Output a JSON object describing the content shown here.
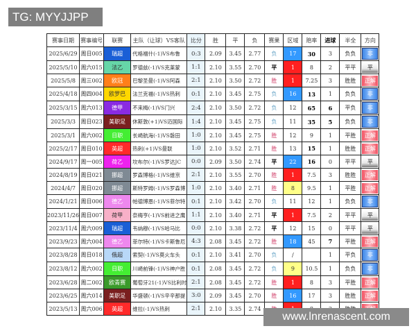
{
  "overlay_tag": "TG: MYYJJPP",
  "watermark": "www.lnrenascent.com",
  "headers": [
    "赛事日期",
    "赛事编号",
    "联赛",
    "主队（让球）VS客队",
    "比分",
    "胜",
    "平",
    "负",
    "赛果",
    "区域",
    "赔率",
    "进球",
    "半全",
    "方向"
  ],
  "colors": {
    "zone_red": "#ff2020",
    "zone_blue": "#3399ff",
    "zone_yellow": "#ffff88",
    "瑞超": "#1a5fd6",
    "法乙": "#66d6a8",
    "欧冠": "#ff7f1a",
    "欧罗巴": "#ffd700",
    "德甲": "#8a2be2",
    "美职足": "#7a1f1f",
    "日职": "#44ee33",
    "英超": "#ff2a2a",
    "荷乙": "#ee22ee",
    "挪超": "#7f8a94",
    "德乙": "#ee88ee",
    "荷甲": "#f8b0c8",
    "俄超": "#b8d8f8",
    "欧青赛": "#3a9a2a"
  },
  "rows": [
    {
      "date": "2025/6/29",
      "code": "周日005",
      "league": "瑞超",
      "match": "代格福什(-1)VS布鲁",
      "score": "0:3",
      "w": "2.09",
      "d": "3.45",
      "l": "2.77",
      "result": "负",
      "zone": "17",
      "zone_color": "blue",
      "odds": "30",
      "goals": "3",
      "hf": "负负",
      "dir": "非",
      "odds_bold": true,
      "goals_bold": false
    },
    {
      "date": "2025/5/10",
      "code": "周六015",
      "league": "法乙",
      "match": "罗德兹(-1)VS克莱蒙",
      "score": "1:1",
      "w": "2.10",
      "d": "3.55",
      "l": "2.70",
      "result": "平",
      "zone": "1",
      "zone_color": "red",
      "odds": "8",
      "goals": "2",
      "hf": "平平",
      "dir": "平",
      "odds_bold": false,
      "goals_bold": false
    },
    {
      "date": "2025/5/8",
      "code": "周三002",
      "league": "欧冠",
      "match": "巴黎圣曼(-1)VS阿森",
      "score": "2:1",
      "w": "2.10",
      "d": "3.50",
      "l": "2.72",
      "result": "胜",
      "zone": "1",
      "zone_color": "red",
      "odds": "7.25",
      "goals": "3",
      "hf": "胜胜",
      "dir": "正解",
      "odds_bold": false,
      "goals_bold": false
    },
    {
      "date": "2025/4/18",
      "code": "周四004",
      "league": "欧罗巴",
      "match": "法兰克福(-1)VS热刺",
      "score": "0:1",
      "w": "2.10",
      "d": "3.45",
      "l": "2.75",
      "result": "负",
      "zone": "16",
      "zone_color": "blue",
      "odds": "13",
      "goals": "1",
      "hf": "负负",
      "dir": "非",
      "odds_bold": true,
      "goals_bold": false
    },
    {
      "date": "2025/3/15",
      "code": "周六013",
      "league": "德甲",
      "match": "不来梅(-1)VS门兴",
      "score": "2:4",
      "w": "2.10",
      "d": "3.50",
      "l": "2.72",
      "result": "负",
      "zone": "12",
      "zone_color": "",
      "odds": "65",
      "goals": "6",
      "hf": "平负",
      "dir": "非",
      "odds_bold": true,
      "goals_bold": true
    },
    {
      "date": "2025/3/3",
      "code": "周日023",
      "league": "美职足",
      "match": "休斯敦(+1)VS迈国际",
      "score": "1:4",
      "w": "2.10",
      "d": "3.45",
      "l": "2.75",
      "result": "负",
      "zone": "11",
      "zone_color": "",
      "odds": "35",
      "goals": "5",
      "hf": "负负",
      "dir": "非",
      "odds_bold": true,
      "goals_bold": true
    },
    {
      "date": "2025/3/1",
      "code": "周六002",
      "league": "日职",
      "match": "长崎航海(-1)VS磐田",
      "score": "1:0",
      "w": "2.10",
      "d": "3.45",
      "l": "2.75",
      "result": "胜",
      "zone": "12",
      "zone_color": "",
      "odds": "9",
      "goals": "1",
      "hf": "平胜",
      "dir": "正解",
      "odds_bold": false,
      "goals_bold": false
    },
    {
      "date": "2025/2/17",
      "code": "周日010",
      "league": "英超",
      "match": "热刺(+1)VS曼联",
      "score": "1:0",
      "w": "2.10",
      "d": "3.52",
      "l": "2.71",
      "result": "胜",
      "zone": "13",
      "zone_color": "",
      "odds": "15",
      "goals": "1",
      "hf": "胜胜",
      "dir": "正解",
      "odds_bold": true,
      "goals_bold": false
    },
    {
      "date": "2024/9/17",
      "code": "周一005",
      "league": "荷乙",
      "match": "坎布尔(-1)VS罗达JC",
      "score": "0:0",
      "w": "2.09",
      "d": "3.50",
      "l": "2.74",
      "result": "平",
      "zone": "22",
      "zone_color": "blue",
      "odds": "16",
      "goals": "0",
      "hf": "平平",
      "dir": "平",
      "odds_bold": true,
      "goals_bold": false
    },
    {
      "date": "2024/8/19",
      "code": "周日021",
      "league": "挪超",
      "match": "罗森博格(-1)VS维京",
      "score": "2:1",
      "w": "2.10",
      "d": "3.55",
      "l": "2.70",
      "result": "胜",
      "zone": "1",
      "zone_color": "red",
      "odds": "7.5",
      "goals": "3",
      "hf": "胜胜",
      "dir": "正解",
      "odds_bold": false,
      "goals_bold": false
    },
    {
      "date": "2024/4/7",
      "code": "周日020",
      "league": "挪超",
      "match": "斯特罗姆(-1)VS罗森博",
      "score": "1:0",
      "w": "2.10",
      "d": "3.40",
      "l": "2.71",
      "result": "胜",
      "zone": "8",
      "zone_color": "yellow",
      "odds": "9.5",
      "goals": "1",
      "hf": "平胜",
      "dir": "正解",
      "odds_bold": false,
      "goals_bold": false
    },
    {
      "date": "2024/1/21",
      "code": "周日006",
      "league": "德乙",
      "match": "帕德博恩(-1)VS菲尔特",
      "score": "0:1",
      "w": "2.10",
      "d": "3.42",
      "l": "2.70",
      "result": "负",
      "zone": "11",
      "zone_color": "",
      "odds": "12",
      "goals": "1",
      "hf": "负负",
      "dir": "非",
      "odds_bold": false,
      "goals_bold": false
    },
    {
      "date": "2023/11/26",
      "code": "周日007",
      "league": "荷甲",
      "match": "奈梅亨(-1)VS前进之鹰",
      "score": "1:1",
      "w": "2.10",
      "d": "3.40",
      "l": "2.71",
      "result": "平",
      "zone": "1",
      "zone_color": "red",
      "odds": "7.5",
      "goals": "2",
      "hf": "平平",
      "dir": "平",
      "odds_bold": false,
      "goals_bold": false
    },
    {
      "date": "2023/11/4",
      "code": "周六009",
      "league": "瑞超",
      "match": "韦纳穆(-1)VS哈马比",
      "score": "0:0",
      "w": "2.10",
      "d": "3.38",
      "l": "2.72",
      "result": "平",
      "zone": "12",
      "zone_color": "",
      "odds": "15",
      "goals": "0",
      "hf": "平平",
      "dir": "平",
      "odds_bold": false,
      "goals_bold": false
    },
    {
      "date": "2023/9/23",
      "code": "周六004",
      "league": "德乙",
      "match": "菲尔特(-1)VS卡斯鲁厄",
      "score": "4:3",
      "w": "2.08",
      "d": "3.45",
      "l": "2.72",
      "result": "胜",
      "zone": "18",
      "zone_color": "blue",
      "odds": "45",
      "goals": "7",
      "hf": "平胜",
      "dir": "正解",
      "odds_bold": false,
      "goals_bold": true
    },
    {
      "date": "2023/8/28",
      "code": "周日018",
      "league": "俄超",
      "match": "索契(-1)VS莫火车头",
      "score": "0:1",
      "w": "2.10",
      "d": "3.41",
      "l": "2.70",
      "result": "负",
      "zone": "/",
      "zone_color": "",
      "odds": "",
      "goals": "1",
      "hf": "平负",
      "dir": "非",
      "odds_bold": false,
      "goals_bold": false
    },
    {
      "date": "2023/8/12",
      "code": "周六002",
      "league": "日职",
      "match": "川崎前锋(-1)VS神户胜",
      "score": "0:1",
      "w": "2.08",
      "d": "3.45",
      "l": "2.72",
      "result": "负",
      "zone": "9",
      "zone_color": "yellow",
      "odds": "10.5",
      "goals": "1",
      "hf": "负负",
      "dir": "非",
      "odds_bold": false,
      "goals_bold": false
    },
    {
      "date": "2023/6/28",
      "code": "周二002",
      "league": "欧青赛",
      "match": "葡萄牙21(-1)VS比利时",
      "score": "2:1",
      "w": "2.08",
      "d": "3.45",
      "l": "2.72",
      "result": "胜",
      "zone": "1",
      "zone_color": "red",
      "odds": "8",
      "goals": "3",
      "hf": "平胜",
      "dir": "正解",
      "odds_bold": false,
      "goals_bold": false
    },
    {
      "date": "2023/6/25",
      "code": "周六014",
      "league": "美职足",
      "match": "华盛顿(-1)VS辛辛那提",
      "score": "3:0",
      "w": "2.09",
      "d": "3.45",
      "l": "2.70",
      "result": "胜",
      "zone": "16",
      "zone_color": "blue",
      "odds": "17",
      "goals": "3",
      "hf": "胜胜",
      "dir": "正解",
      "odds_bold": false,
      "goals_bold": false
    },
    {
      "date": "2023/5/13",
      "code": "周六006",
      "league": "英超",
      "match": "维拉(-1)VS热刺",
      "score": "2:1",
      "w": "2.10",
      "d": "3.35",
      "l": "2.74",
      "result": "胜",
      "zone": "1",
      "zone_color": "red",
      "odds": "8",
      "goals": "3",
      "hf": "胜胜",
      "dir": "正解",
      "odds_bold": false,
      "goals_bold": false
    }
  ]
}
